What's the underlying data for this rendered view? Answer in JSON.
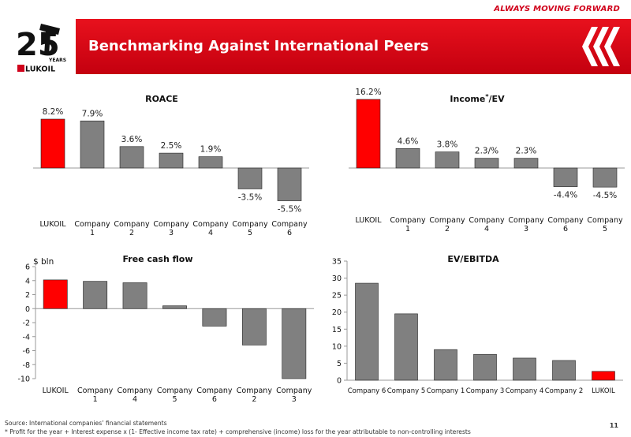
{
  "header": {
    "tagline": "ALWAYS MOVING FORWARD",
    "title": "Benchmarking Against International Peers",
    "logo_years_text": "YEARS",
    "logo_brand_text": "LUKOIL",
    "logo_number": "25"
  },
  "colors": {
    "brand_red": "#e8111d",
    "highlight_bar": "#ff0000",
    "default_bar": "#808080"
  },
  "chart_data": [
    {
      "id": "roace",
      "type": "bar",
      "title": "ROACE",
      "categories": [
        "LUKOIL",
        "Company\n1",
        "Company\n2",
        "Company\n3",
        "Company\n4",
        "Company\n5",
        "Company\n6"
      ],
      "values": [
        8.2,
        7.9,
        3.6,
        2.5,
        1.9,
        -3.5,
        -5.5
      ],
      "data_labels": [
        "8.2%",
        "7.9%",
        "3.6%",
        "2.5%",
        "1.9%",
        "-3.5%",
        "-5.5%"
      ],
      "highlight_index": 0,
      "y_axis_visible": false
    },
    {
      "id": "income_ev",
      "type": "bar",
      "title": "Income",
      "title_superscript": "*",
      "title_suffix": "/EV",
      "categories": [
        "LUKOIL",
        "Company\n1",
        "Company\n2",
        "Company\n4",
        "Company\n3",
        "Company\n6",
        "Company\n5"
      ],
      "values": [
        16.2,
        4.6,
        3.8,
        2.3,
        2.3,
        -4.4,
        -4.5
      ],
      "data_labels": [
        "16.2%",
        "4.6%",
        "3.8%",
        "2.3/%",
        "2.3%",
        "-4.4%",
        "-4.5%"
      ],
      "highlight_index": 0,
      "y_axis_visible": false
    },
    {
      "id": "fcf",
      "type": "bar",
      "title": "Free cash flow",
      "unit_label": "$ bln",
      "categories": [
        "LUKOIL",
        "Company\n1",
        "Company\n4",
        "Company\n5",
        "Company\n6",
        "Company\n2",
        "Company\n3"
      ],
      "values": [
        4.1,
        3.9,
        3.7,
        0.4,
        -2.5,
        -5.2,
        -10.0
      ],
      "highlight_index": 0,
      "ylim": [
        -10,
        6
      ],
      "yticks": [
        6,
        4,
        2,
        0,
        -2,
        -4,
        -6,
        -8,
        -10
      ]
    },
    {
      "id": "ev_ebitda",
      "type": "bar",
      "title": "EV/EBITDA",
      "categories": [
        "Company 6",
        "Company 5",
        "Company 1",
        "Company 3",
        "Company 4",
        "Company 2",
        "LUKOIL"
      ],
      "values": [
        28.5,
        19.5,
        9.0,
        7.6,
        6.5,
        5.8,
        2.6
      ],
      "highlight_index": 6,
      "ylim": [
        0,
        35
      ],
      "yticks": [
        0,
        5,
        10,
        15,
        20,
        25,
        30,
        35
      ]
    }
  ],
  "footer": {
    "source": "Source: International companies’ financial statements",
    "note": "* Profit for the year + Interest expense x (1- Effective income tax rate) + comprehensive (income) loss for the year attributable to non-controlling interests",
    "page_number": "11"
  }
}
